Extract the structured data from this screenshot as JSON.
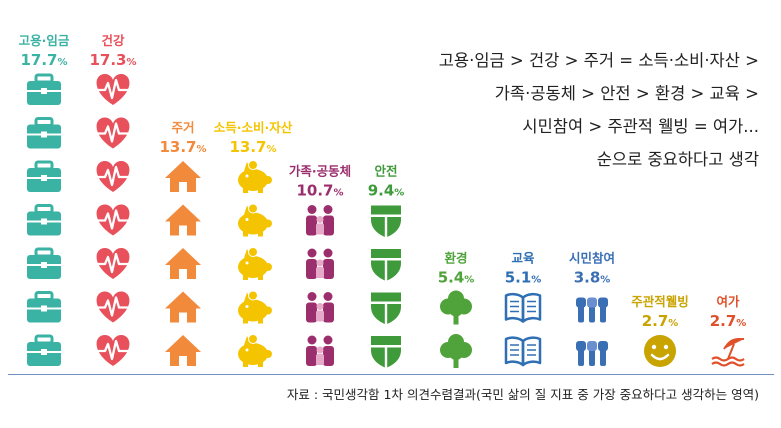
{
  "colors": {
    "employment": "#3bb3a4",
    "health": "#e8505b",
    "housing": "#f28a3c",
    "income": "#f5c400",
    "family": "#9b2f6e",
    "safety": "#3e9a3a",
    "environment": "#4fa33a",
    "education": "#2f6fb4",
    "civic": "#3a6fb4",
    "wellbeing": "#c9a300",
    "leisure": "#e0502a"
  },
  "summary": {
    "line1": "고용·임금 > 건강 > 주거 = 소득·소비·자산 >",
    "line2": "가족·공동체 > 안전 > 환경 > 교육 >",
    "line3": "시민참여 > 주관적 웰빙 = 여가...",
    "line4": "순으로 중요하다고 생각"
  },
  "source": "자료 : 국민생각함 1차 의견수렴결과(국민 삶의 질 지표 중 가장 중요하다고 생각하는 영역)",
  "chart_data": {
    "type": "bar",
    "value_unit": "%",
    "categories": [
      "고용·임금",
      "건강",
      "주거",
      "소득·소비·자산",
      "가족·공동체",
      "안전",
      "환경",
      "교육",
      "시민참여",
      "주관적웰빙",
      "여가"
    ],
    "icons": [
      "briefcase-icon",
      "heart-icon",
      "house-icon",
      "piggy-bank-icon",
      "family-icon",
      "shield-icon",
      "tree-icon",
      "book-icon",
      "raised-hands-icon",
      "smiley-icon",
      "beach-umbrella-icon"
    ],
    "values": [
      17.7,
      17.3,
      13.7,
      13.7,
      10.7,
      9.4,
      5.4,
      5.1,
      3.8,
      2.7,
      2.7
    ],
    "ylim": [
      0,
      17.7
    ]
  }
}
